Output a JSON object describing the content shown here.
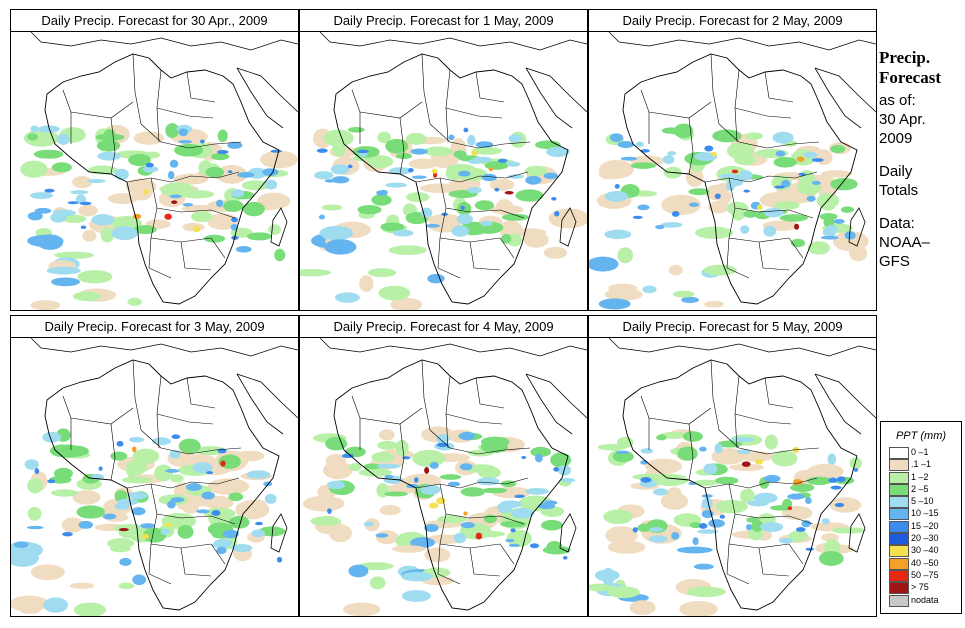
{
  "panels": [
    {
      "title": "Daily Precip. Forecast for  30 Apr., 2009",
      "seed": 11
    },
    {
      "title": "Daily Precip. Forecast for  1 May, 2009",
      "seed": 23
    },
    {
      "title": "Daily Precip. Forecast for  2 May, 2009",
      "seed": 37
    },
    {
      "title": "Daily Precip. Forecast for  3 May, 2009",
      "seed": 41
    },
    {
      "title": "Daily Precip. Forecast for  4 May, 2009",
      "seed": 59
    },
    {
      "title": "Daily Precip. Forecast for  5 May, 2009",
      "seed": 67
    }
  ],
  "sidebar": {
    "title_line1": "Precip.",
    "title_line2": "Forecast",
    "asof": "as of:",
    "date_line1": "30 Apr.",
    "date_line2": "2009",
    "daily_line1": "Daily",
    "daily_line2": "Totals",
    "data_line1": "Data:",
    "data_line2": "NOAA–",
    "data_line3": "GFS"
  },
  "legend": {
    "title": "PPT (mm)",
    "items": [
      {
        "label": "0 –1",
        "color": "#ffffff"
      },
      {
        "label": ".1 –1",
        "color": "#f0dcc0"
      },
      {
        "label": "1 –2",
        "color": "#b8f0a8"
      },
      {
        "label": "2 –5",
        "color": "#78dc78"
      },
      {
        "label": "5 –10",
        "color": "#a0dcf0"
      },
      {
        "label": "10 –15",
        "color": "#64b4f0"
      },
      {
        "label": "15 –20",
        "color": "#3c8cf0"
      },
      {
        "label": "20 –30",
        "color": "#1e5adc"
      },
      {
        "label": "30 –40",
        "color": "#f5e050"
      },
      {
        "label": "40 –50",
        "color": "#f5a028"
      },
      {
        "label": "50 –75",
        "color": "#e62814"
      },
      {
        "label": "> 75",
        "color": "#a01414"
      },
      {
        "label": "nodata",
        "color": "#c8c8c8"
      }
    ]
  }
}
